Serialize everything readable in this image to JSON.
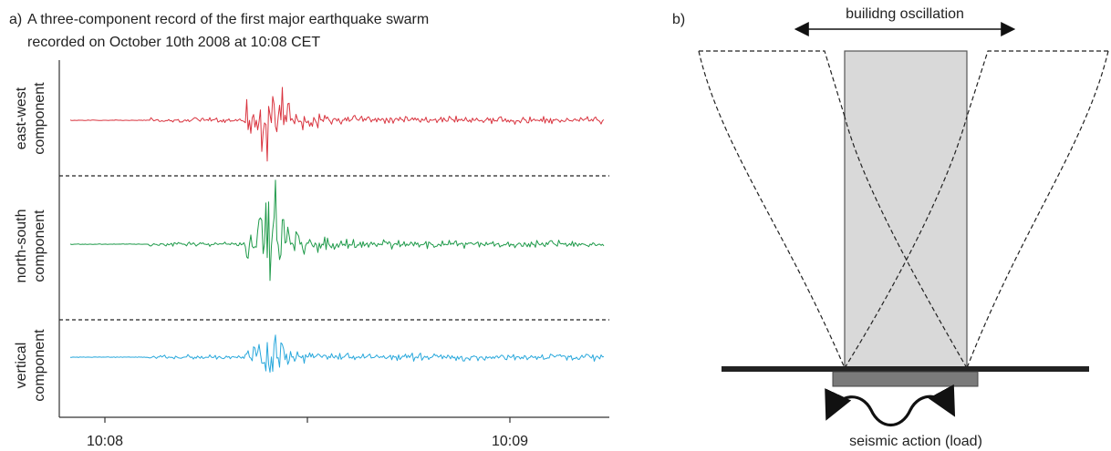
{
  "panel_a": {
    "label": "a)",
    "title_line1": "A three-component record of the first major earthquake swarm",
    "title_line2": "recorded on October 10th 2008 at 10:08 CET",
    "traces": [
      {
        "label_line1": "east-west",
        "label_line2": "component",
        "color": "#d9343f"
      },
      {
        "label_line1": "north-south",
        "label_line2": "component",
        "color": "#1f9a4a"
      },
      {
        "label_line1": "vertical",
        "label_line2": "component",
        "color": "#29a8dc"
      }
    ],
    "time_ticks": [
      "10:08",
      "10:09"
    ]
  },
  "panel_b": {
    "label": "b)",
    "oscillation_label": "builidng oscillation",
    "load_label": "seismic action (load)",
    "building_color": "#d9d9d9",
    "foundation_color": "#7a7a7a",
    "ground_color": "#222222"
  }
}
